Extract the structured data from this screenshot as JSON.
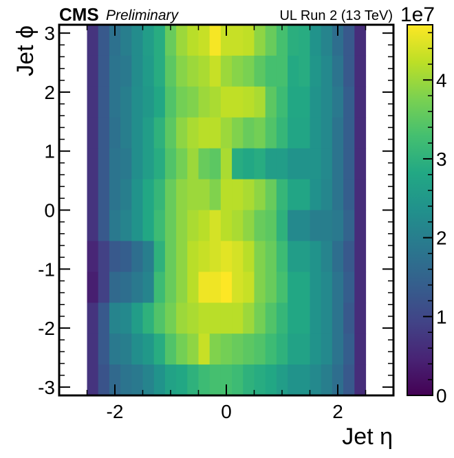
{
  "header": {
    "experiment": "CMS",
    "status": "Preliminary",
    "run_info": "UL Run 2 (13 TeV)"
  },
  "chart_data": {
    "type": "heatmap",
    "xlabel": "Jet η",
    "ylabel": "Jet ϕ",
    "xlim": [
      -3.0,
      3.0
    ],
    "ylim": [
      -3.1416,
      3.1416
    ],
    "x_ticks": [
      -2,
      0,
      2
    ],
    "x_tick_labels": [
      "-2",
      "0",
      "2"
    ],
    "y_ticks": [
      -3,
      -2,
      -1,
      0,
      1,
      2,
      3
    ],
    "y_tick_labels": [
      "-3",
      "-2",
      "-1",
      "0",
      "1",
      "2",
      "3"
    ],
    "colorbar": {
      "colormap": "viridis",
      "range": [
        0,
        47000000.0
      ],
      "ticks": [
        0,
        10000000.0,
        20000000.0,
        30000000.0,
        40000000.0
      ],
      "tick_labels": [
        "0",
        "1",
        "2",
        "3",
        "4"
      ],
      "exponent_label": "1e7"
    },
    "eta_edges": [
      -2.5,
      -2.3,
      -2.1,
      -1.9,
      -1.7,
      -1.5,
      -1.3,
      -1.1,
      -0.9,
      -0.7,
      -0.5,
      -0.3,
      -0.1,
      0.1,
      0.3,
      0.5,
      0.7,
      0.9,
      1.1,
      1.3,
      1.5,
      1.7,
      1.9,
      2.1,
      2.3,
      2.5
    ],
    "phi_bins": 12,
    "values_note_units": "entries per bin, rows ordered from phi=+pi (top) to phi=-pi (bottom), columns ordered in increasing eta",
    "values": [
      [
        0.7,
        1.3,
        1.75,
        2.0,
        2.25,
        2.6,
        2.9,
        3.6,
        4.0,
        4.2,
        4.3,
        4.65,
        4.3,
        4.3,
        4.25,
        3.9,
        3.6,
        3.3,
        2.95,
        2.9,
        2.4,
        2.1,
        1.7,
        1.3,
        0.6
      ],
      [
        0.7,
        1.3,
        1.8,
        1.9,
        2.25,
        2.55,
        2.9,
        3.5,
        3.85,
        4.0,
        4.1,
        4.3,
        4.0,
        3.85,
        3.75,
        3.5,
        3.3,
        3.3,
        2.85,
        2.9,
        2.45,
        2.2,
        1.8,
        1.3,
        0.6
      ],
      [
        0.7,
        1.3,
        1.8,
        2.0,
        2.3,
        2.5,
        2.8,
        3.4,
        3.7,
        3.8,
        4.0,
        4.1,
        4.25,
        4.25,
        4.2,
        4.1,
        3.5,
        3.2,
        2.8,
        2.8,
        2.4,
        2.2,
        1.9,
        1.4,
        0.6
      ],
      [
        0.7,
        1.3,
        1.75,
        2.0,
        2.3,
        2.6,
        3.0,
        3.5,
        3.9,
        4.1,
        4.2,
        4.2,
        4.0,
        3.8,
        3.6,
        3.7,
        3.4,
        3.1,
        2.75,
        2.75,
        2.4,
        2.2,
        1.8,
        1.4,
        0.6
      ],
      [
        0.7,
        1.3,
        1.8,
        1.9,
        2.3,
        2.6,
        2.9,
        3.4,
        3.7,
        4.0,
        3.6,
        3.5,
        4.1,
        2.9,
        2.8,
        2.9,
        2.6,
        2.6,
        2.4,
        2.4,
        2.4,
        2.2,
        1.8,
        1.4,
        0.6
      ],
      [
        0.7,
        1.3,
        1.8,
        2.0,
        2.4,
        2.8,
        3.1,
        3.6,
        3.9,
        4.0,
        4.0,
        3.8,
        4.2,
        4.2,
        4.1,
        3.9,
        3.6,
        3.1,
        2.75,
        2.75,
        2.35,
        2.15,
        1.8,
        1.4,
        0.6
      ],
      [
        0.7,
        1.3,
        1.9,
        2.1,
        2.4,
        2.8,
        3.2,
        3.6,
        3.9,
        4.1,
        4.2,
        4.4,
        4.2,
        4.1,
        3.9,
        3.6,
        3.5,
        3.0,
        2.2,
        2.2,
        2.0,
        2.0,
        1.9,
        1.5,
        0.6
      ],
      [
        0.5,
        0.9,
        1.3,
        1.4,
        1.7,
        2.0,
        3.0,
        3.6,
        3.9,
        4.2,
        4.3,
        4.4,
        4.5,
        4.4,
        4.2,
        3.8,
        3.6,
        3.2,
        2.6,
        2.6,
        2.4,
        2.1,
        1.7,
        1.3,
        0.6
      ],
      [
        0.4,
        0.9,
        1.6,
        1.7,
        1.9,
        2.1,
        3.2,
        3.6,
        3.9,
        4.2,
        4.6,
        4.6,
        4.7,
        4.4,
        4.3,
        3.8,
        3.6,
        3.3,
        2.8,
        2.8,
        2.4,
        2.2,
        1.8,
        1.4,
        0.6
      ],
      [
        0.7,
        1.3,
        2.1,
        2.2,
        2.6,
        3.0,
        3.4,
        3.7,
        4.0,
        4.1,
        4.2,
        4.2,
        4.2,
        4.2,
        4.0,
        3.7,
        3.4,
        3.1,
        2.8,
        2.8,
        2.4,
        2.2,
        1.8,
        1.3,
        0.6
      ],
      [
        0.7,
        1.3,
        1.9,
        2.0,
        2.3,
        2.5,
        2.9,
        3.4,
        3.7,
        3.9,
        4.3,
        3.8,
        3.7,
        3.6,
        3.5,
        3.4,
        3.2,
        3.0,
        2.7,
        2.7,
        2.4,
        2.2,
        1.8,
        1.4,
        0.6
      ],
      [
        0.7,
        1.2,
        1.6,
        1.8,
        1.9,
        2.1,
        2.4,
        2.7,
        2.8,
        3.0,
        3.2,
        3.3,
        3.3,
        3.2,
        3.0,
        2.9,
        2.8,
        2.6,
        2.4,
        2.4,
        2.2,
        2.0,
        1.7,
        1.3,
        0.6
      ]
    ]
  }
}
